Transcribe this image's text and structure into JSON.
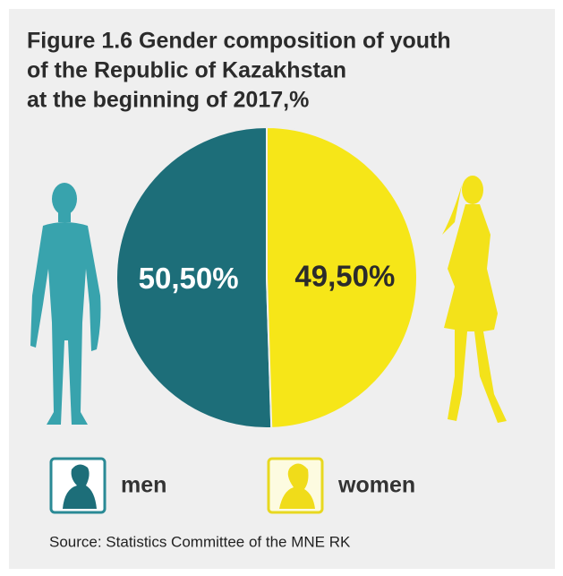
{
  "chart_data": {
    "type": "pie",
    "title": [
      "Figure 1.6 Gender composition of youth",
      "of the Republic of Kazakhstan",
      "at the beginning of 2017,%"
    ],
    "categories": [
      "men",
      "women"
    ],
    "values": [
      50.5,
      49.5
    ],
    "value_labels": [
      "50,50%",
      "49,50%"
    ],
    "colors": [
      "#1d6e79",
      "#f6e618"
    ],
    "source": "Source: Statistics Committee of the MNE RK"
  }
}
